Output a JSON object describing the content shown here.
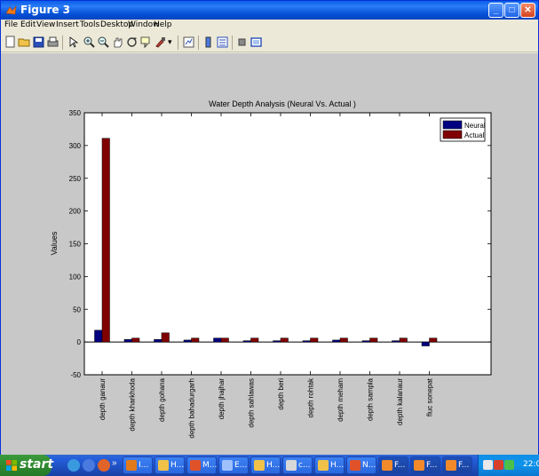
{
  "window": {
    "title": "Figure 3"
  },
  "menu": [
    "File",
    "Edit",
    "View",
    "Insert",
    "Tools",
    "Desktop",
    "Window",
    "Help"
  ],
  "toolbar_icons": [
    "new-figure-icon",
    "open-file-icon",
    "save-icon",
    "print-icon",
    "pointer-icon",
    "zoom-in-icon",
    "zoom-out-icon",
    "pan-icon",
    "rotate-icon",
    "data-cursor-icon",
    "brush-icon",
    "link-icon",
    "colorbar-icon",
    "legend-icon",
    "hide-plot-tools-icon",
    "show-plot-tools-icon"
  ],
  "chart_data": {
    "type": "bar",
    "title": "Water Depth Analysis (Neural Vs. Actual )",
    "xlabel": "",
    "ylabel": "Values",
    "ylim": [
      -50,
      350
    ],
    "yticks": [
      -50,
      0,
      50,
      100,
      150,
      200,
      250,
      300,
      350
    ],
    "categories": [
      "depth ganaur",
      "depth kharkhoda",
      "depth gohana",
      "depth bahadurgarh",
      "depth jhajhar",
      "depth sahlawas",
      "depth beri",
      "depth rohtak",
      "depth meham",
      "depth sampla",
      "depth kalanaur",
      "fluc sonepat"
    ],
    "series": [
      {
        "name": "Neural",
        "color": "#000080",
        "values": [
          18,
          4,
          4,
          3,
          6,
          2,
          2,
          2,
          3,
          2,
          2,
          -6
        ]
      },
      {
        "name": "Actual",
        "color": "#800000",
        "values": [
          311,
          6,
          14,
          6,
          6,
          6,
          6,
          6,
          6,
          6,
          6,
          6
        ]
      }
    ],
    "legend_position": "top-right",
    "grid": false
  },
  "taskbar": {
    "start_label": "start",
    "tasks": [
      {
        "label": "I...",
        "icon": "browser-icon",
        "color": "#e07a1a"
      },
      {
        "label": "H...",
        "icon": "folder-icon",
        "color": "#f0c24a"
      },
      {
        "label": "M...",
        "icon": "matlab-icon",
        "color": "#e0522a"
      },
      {
        "label": "E...",
        "icon": "editor-icon",
        "color": "#9fc0ff"
      },
      {
        "label": "H...",
        "icon": "folder-icon",
        "color": "#f0c24a"
      },
      {
        "label": "c...",
        "icon": "document-icon",
        "color": "#d8d8d8"
      },
      {
        "label": "H...",
        "icon": "folder-icon",
        "color": "#f0c24a"
      },
      {
        "label": "N...",
        "icon": "matlab-icon",
        "color": "#e0522a"
      },
      {
        "label": "F...",
        "icon": "figure-icon",
        "color": "#f08a2a"
      },
      {
        "label": "F...",
        "icon": "figure-icon",
        "color": "#f08a2a"
      },
      {
        "label": "F...",
        "icon": "figure-icon",
        "color": "#f08a2a"
      }
    ],
    "clock": "22:08"
  }
}
